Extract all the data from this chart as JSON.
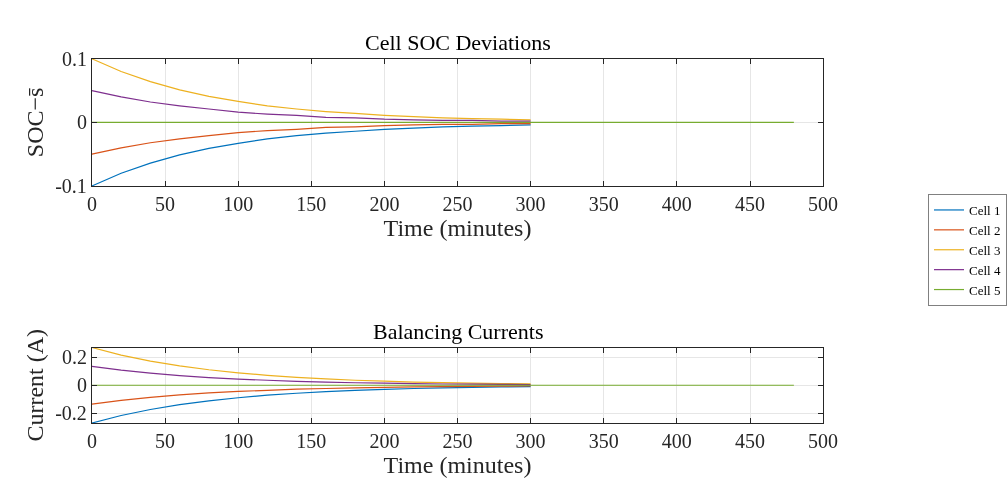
{
  "chart_data": [
    {
      "type": "line",
      "title": "Cell SOC Deviations",
      "xlabel": "Time (minutes)",
      "ylabel": "SOC−s̄",
      "x": [
        0,
        20,
        40,
        60,
        80,
        100,
        120,
        140,
        160,
        180,
        200,
        220,
        240,
        260,
        280,
        300,
        320,
        340,
        360,
        380,
        400,
        420,
        440,
        460,
        480
      ],
      "series": [
        {
          "name": "Cell 1",
          "color": "#0072bd",
          "values": [
            -0.1,
            -0.08,
            -0.064,
            -0.051,
            -0.041,
            -0.033,
            -0.026,
            -0.021,
            -0.017,
            -0.014,
            -0.011,
            -0.009,
            -0.007,
            -0.006,
            -0.005,
            -0.004,
            null,
            null,
            null,
            null,
            null,
            null,
            null,
            null,
            null
          ]
        },
        {
          "name": "Cell 2",
          "color": "#d95319",
          "values": [
            -0.05,
            -0.04,
            -0.032,
            -0.026,
            -0.021,
            -0.016,
            -0.013,
            -0.011,
            -0.008,
            -0.007,
            -0.005,
            -0.004,
            -0.003,
            -0.003,
            -0.002,
            -0.002,
            null,
            null,
            null,
            null,
            null,
            null,
            null,
            null,
            null
          ]
        },
        {
          "name": "Cell 3",
          "color": "#edb120",
          "values": [
            0.1,
            0.08,
            0.064,
            0.051,
            0.041,
            0.033,
            0.026,
            0.021,
            0.017,
            0.014,
            0.011,
            0.009,
            0.007,
            0.006,
            0.005,
            0.004,
            null,
            null,
            null,
            null,
            null,
            null,
            null,
            null,
            null
          ]
        },
        {
          "name": "Cell 4",
          "color": "#7e2f8e",
          "values": [
            0.05,
            0.04,
            0.032,
            0.026,
            0.021,
            0.016,
            0.013,
            0.011,
            0.008,
            0.007,
            0.005,
            0.004,
            0.003,
            0.003,
            0.002,
            0.002,
            null,
            null,
            null,
            null,
            null,
            null,
            null,
            null,
            null
          ]
        },
        {
          "name": "Cell 5",
          "color": "#77ac30",
          "values": [
            0,
            0,
            0,
            0,
            0,
            0,
            0,
            0,
            0,
            0,
            0,
            0,
            0,
            0,
            0,
            0,
            0,
            0,
            0,
            0,
            0,
            0,
            0,
            0,
            0
          ]
        }
      ],
      "xlim": [
        0,
        500
      ],
      "xticks": [
        0,
        50,
        100,
        150,
        200,
        250,
        300,
        350,
        400,
        450,
        500
      ],
      "ylim": [
        -0.1,
        0.1
      ],
      "yticks": [
        -0.1,
        0,
        0.1
      ],
      "grid": true,
      "legend": "right"
    },
    {
      "type": "line",
      "title": "Balancing Currents",
      "xlabel": "Time (minutes)",
      "ylabel": "Current (A)",
      "x": [
        0,
        20,
        40,
        60,
        80,
        100,
        120,
        140,
        160,
        180,
        200,
        220,
        240,
        260,
        280,
        300,
        320,
        340,
        360,
        380,
        400,
        420,
        440,
        460,
        480
      ],
      "series": [
        {
          "color": "#0072bd",
          "values": [
            -0.27,
            -0.216,
            -0.173,
            -0.139,
            -0.111,
            -0.089,
            -0.071,
            -0.057,
            -0.046,
            -0.036,
            -0.029,
            -0.023,
            -0.019,
            -0.015,
            -0.012,
            -0.01,
            null,
            null,
            null,
            null,
            null,
            null,
            null,
            null,
            null
          ]
        },
        {
          "color": "#d95319",
          "values": [
            -0.135,
            -0.108,
            -0.087,
            -0.069,
            -0.055,
            -0.044,
            -0.036,
            -0.028,
            -0.023,
            -0.018,
            -0.015,
            -0.012,
            -0.009,
            -0.008,
            -0.006,
            -0.005,
            null,
            null,
            null,
            null,
            null,
            null,
            null,
            null,
            null
          ]
        },
        {
          "color": "#edb120",
          "values": [
            0.27,
            0.216,
            0.173,
            0.139,
            0.111,
            0.089,
            0.071,
            0.057,
            0.046,
            0.036,
            0.029,
            0.023,
            0.019,
            0.015,
            0.012,
            0.01,
            null,
            null,
            null,
            null,
            null,
            null,
            null,
            null,
            null
          ]
        },
        {
          "color": "#7e2f8e",
          "values": [
            0.135,
            0.108,
            0.087,
            0.069,
            0.055,
            0.044,
            0.036,
            0.028,
            0.023,
            0.018,
            0.015,
            0.012,
            0.009,
            0.008,
            0.006,
            0.005,
            null,
            null,
            null,
            null,
            null,
            null,
            null,
            null,
            null
          ]
        },
        {
          "color": "#77ac30",
          "values": [
            0,
            0,
            0,
            0,
            0,
            0,
            0,
            0,
            0,
            0,
            0,
            0,
            0,
            0,
            0,
            0,
            0,
            0,
            0,
            0,
            0,
            0,
            0,
            0,
            0
          ]
        }
      ],
      "xlim": [
        0,
        500
      ],
      "xticks": [
        0,
        50,
        100,
        150,
        200,
        250,
        300,
        350,
        400,
        450,
        500
      ],
      "ylim": [
        -0.27,
        0.27
      ],
      "yticks": [
        -0.2,
        0,
        0.2
      ],
      "grid": true
    }
  ]
}
